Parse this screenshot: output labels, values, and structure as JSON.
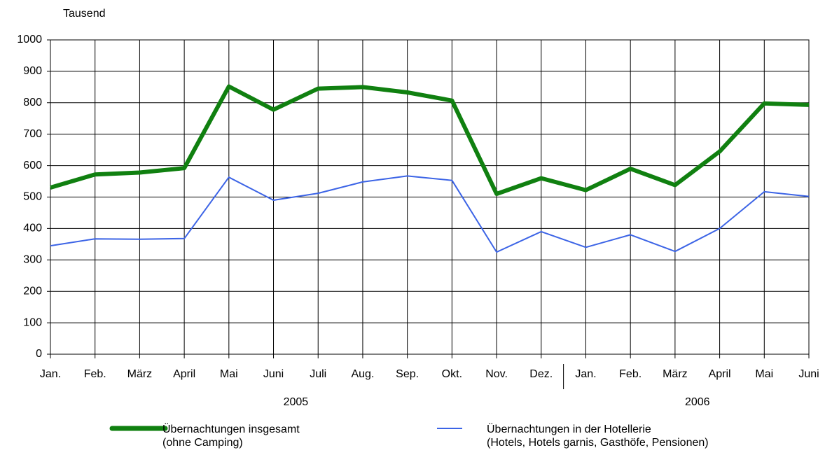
{
  "chart_data": {
    "type": "line",
    "y_axis_label": "Tausend",
    "categories": [
      "Jan.",
      "Feb.",
      "März",
      "April",
      "Mai",
      "Juni",
      "Juli",
      "Aug.",
      "Sep.",
      "Okt.",
      "Nov.",
      "Dez.",
      "Jan.",
      "Feb.",
      "März",
      "April",
      "Mai",
      "Juni"
    ],
    "x_groups": [
      "2005",
      "2006"
    ],
    "series": [
      {
        "name": "Übernachtungen insgesamt\n(ohne Camping)",
        "color": "#108010",
        "values": [
          530,
          572,
          578,
          592,
          852,
          778,
          845,
          850,
          833,
          807,
          510,
          560,
          522,
          590,
          538,
          645,
          798,
          793
        ]
      },
      {
        "name": "Übernachtungen in der Hotellerie\n(Hotels, Hotels garnis, Gasthöfe, Pensionen)",
        "color": "#3c64e6",
        "values": [
          345,
          367,
          366,
          368,
          563,
          490,
          512,
          548,
          567,
          553,
          325,
          390,
          340,
          380,
          327,
          400,
          517,
          502
        ]
      }
    ],
    "ylim": [
      0,
      1000
    ],
    "yticks": [
      0,
      100,
      200,
      300,
      400,
      500,
      600,
      700,
      800,
      900,
      1000
    ],
    "grid": true
  }
}
